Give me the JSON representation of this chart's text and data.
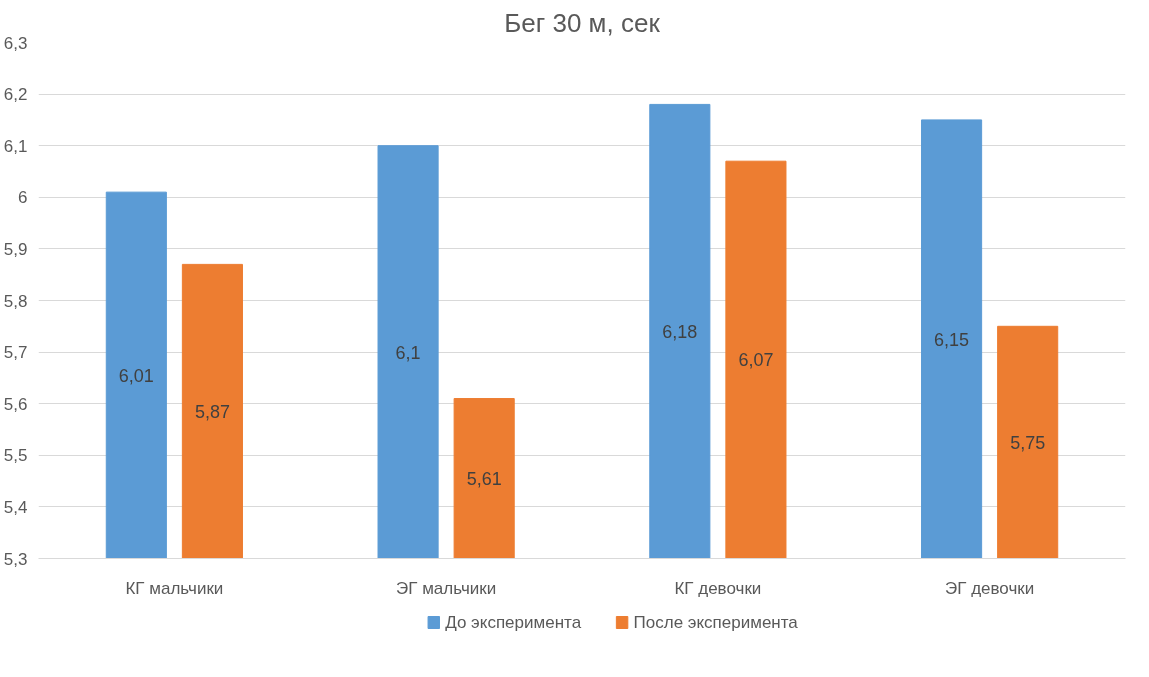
{
  "chart_data": {
    "type": "bar",
    "title": "Бег 30 м, сек",
    "categories": [
      "КГ мальчики",
      "ЭГ мальчики",
      "КГ девочки",
      "ЭГ девочки"
    ],
    "series": [
      {
        "name": "До эксперимента",
        "color": "#5b9bd5",
        "values": [
          6.01,
          6.1,
          6.18,
          6.15
        ],
        "value_labels": [
          "6,01",
          "6,1",
          "6,18",
          "6,15"
        ]
      },
      {
        "name": "После эксперимента",
        "color": "#ed7d31",
        "values": [
          5.87,
          5.61,
          6.07,
          5.75
        ],
        "value_labels": [
          "5,87",
          "5,61",
          "6,07",
          "5,75"
        ]
      }
    ],
    "ylim": [
      5.3,
      6.3
    ],
    "yticks": [
      {
        "value": 5.3,
        "label": "5,3"
      },
      {
        "value": 5.4,
        "label": "5,4"
      },
      {
        "value": 5.5,
        "label": "5,5"
      },
      {
        "value": 5.6,
        "label": "5,6"
      },
      {
        "value": 5.7,
        "label": "5,7"
      },
      {
        "value": 5.8,
        "label": "5,8"
      },
      {
        "value": 5.9,
        "label": "5,9"
      },
      6,
      {
        "value": 6.1,
        "label": "6,1"
      },
      {
        "value": 6.2,
        "label": "6,2"
      },
      {
        "value": 6.3,
        "label": "6,3"
      }
    ],
    "grid": "y",
    "legend": "bottom"
  }
}
